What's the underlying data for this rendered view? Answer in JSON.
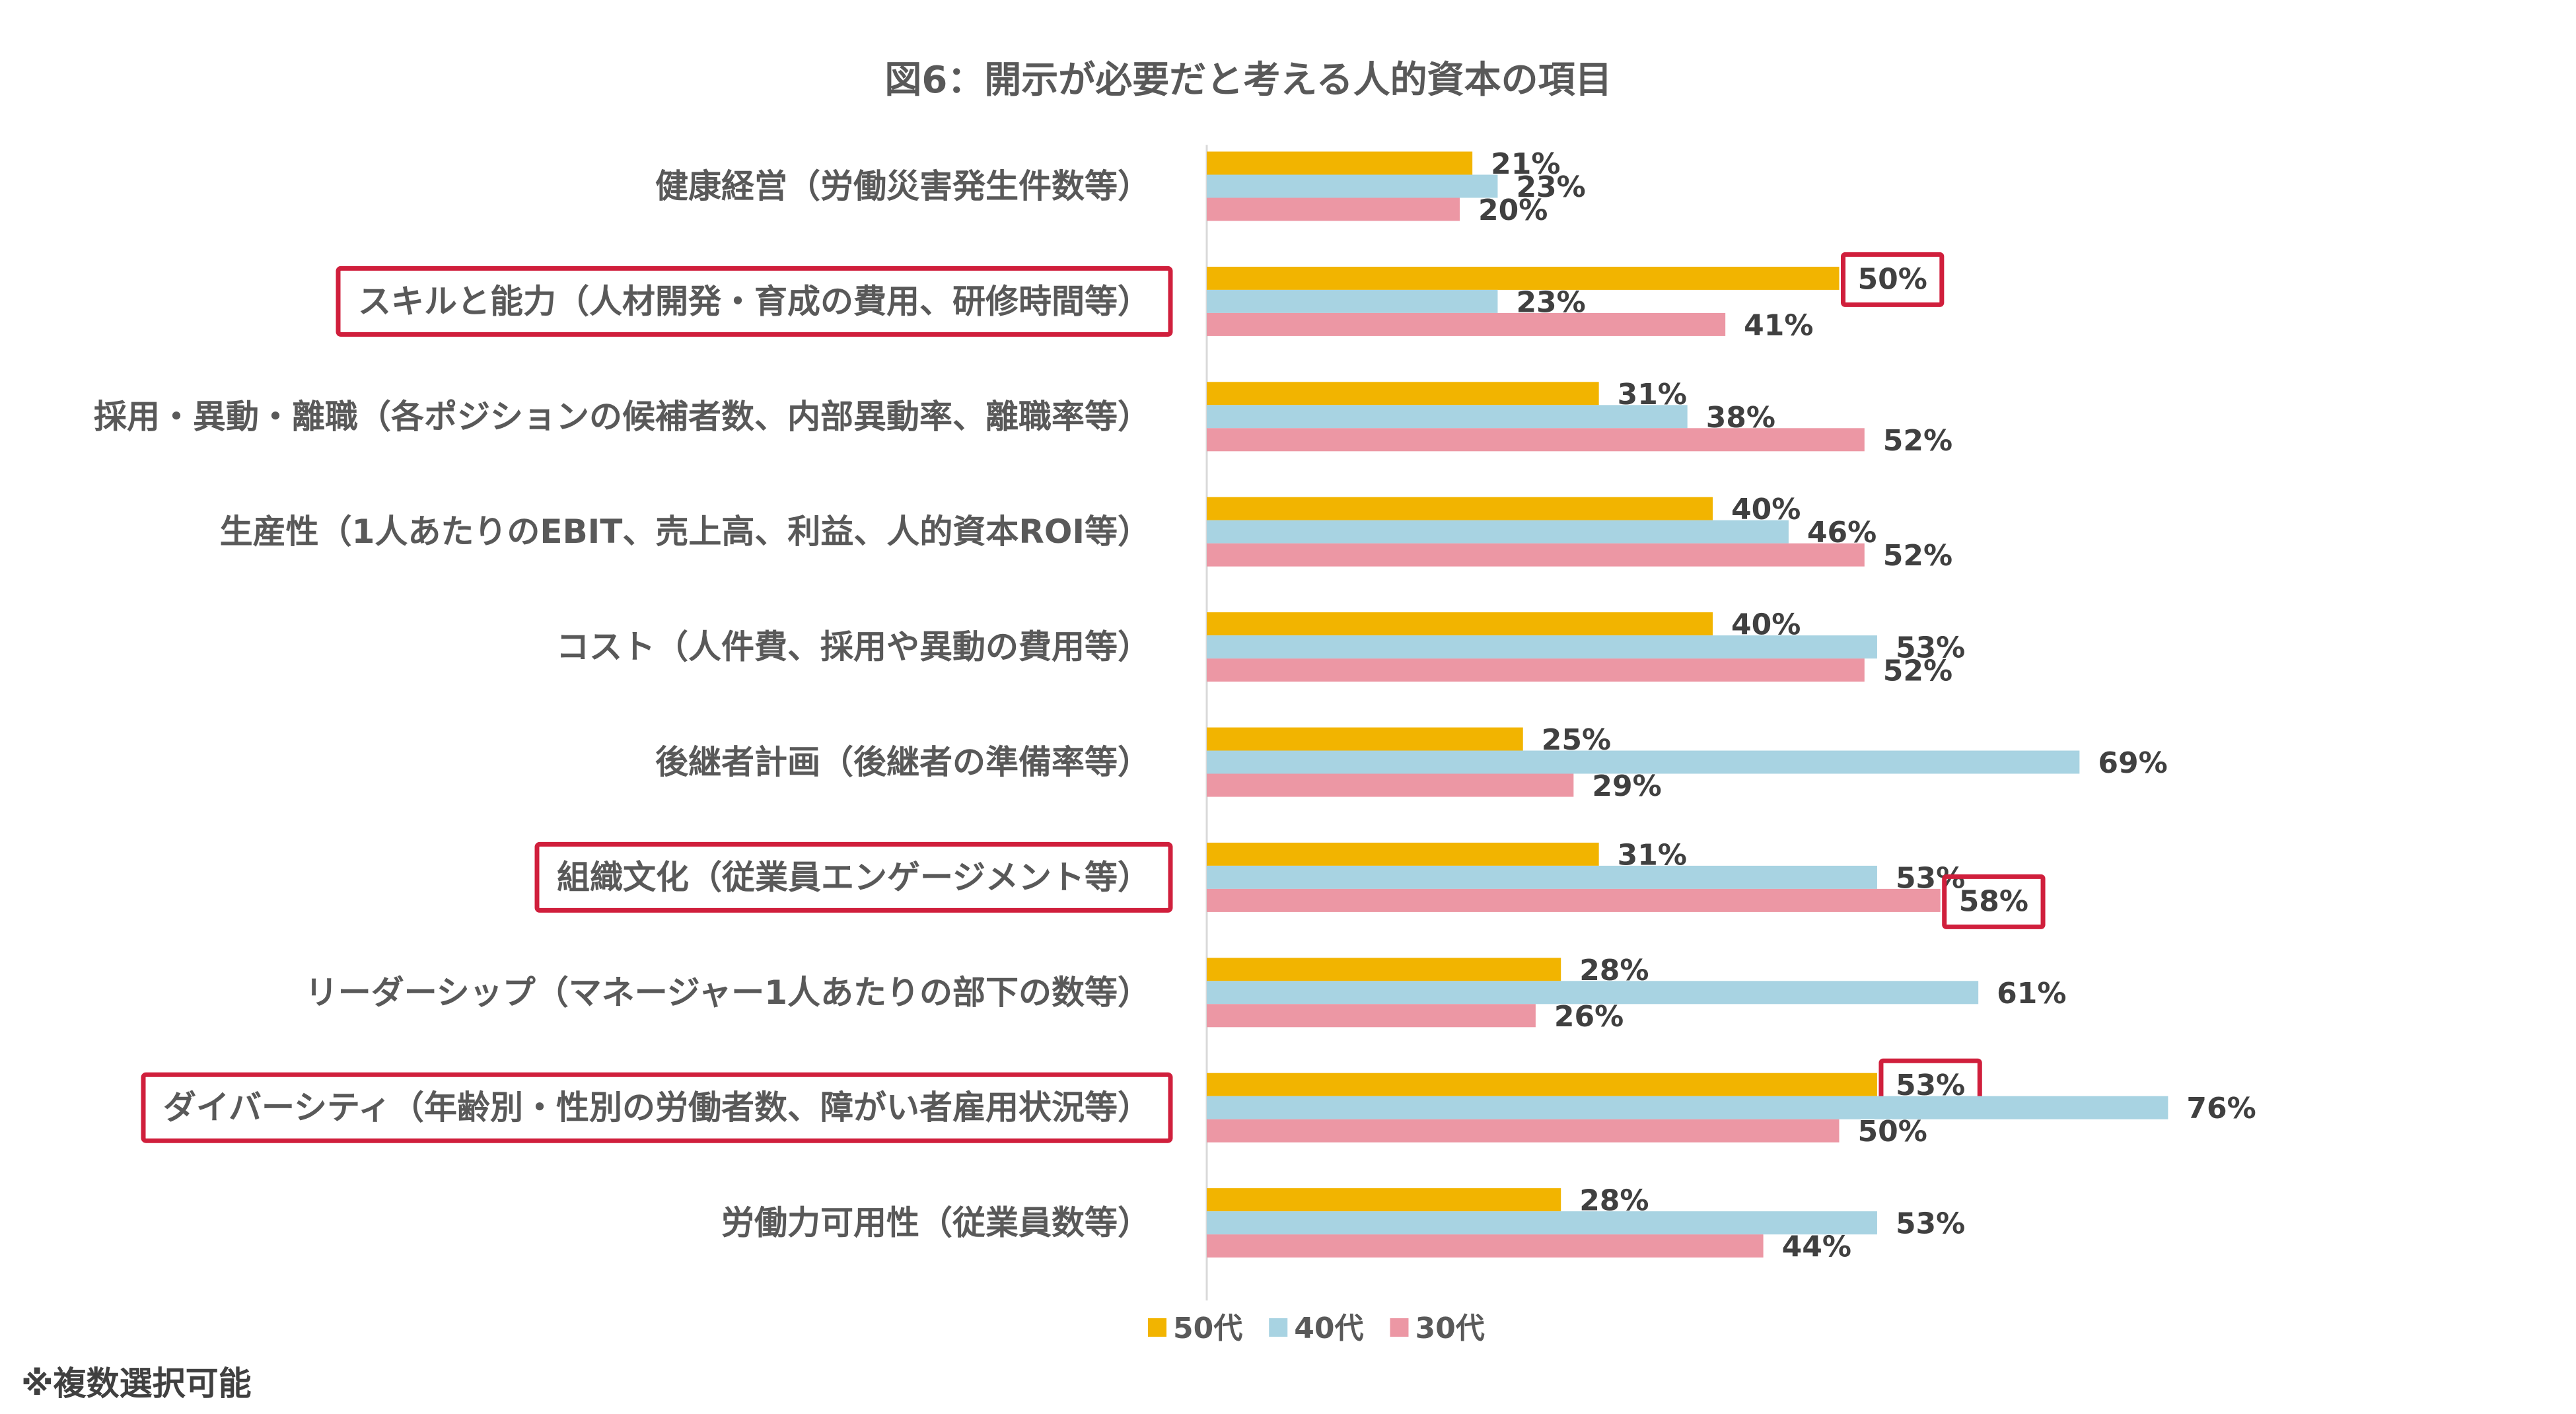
{
  "chart_data": {
    "type": "bar",
    "orientation": "horizontal",
    "title": "図6：開示が必要だと考える人的資本の項目",
    "categories": [
      "健康経営（労働災害発生件数等）",
      "スキルと能力（人材開発・育成の費用、研修時間等）",
      "採用・異動・離職（各ポジションの候補者数、内部異動率、離職率等）",
      "生産性（1人あたりのEBIT、売上高、利益、人的資本ROI等）",
      "コスト（人件費、採用や異動の費用等）",
      "後継者計画（後継者の準備率等）",
      "組織文化（従業員エンゲージメント等）",
      "リーダーシップ（マネージャー1人あたりの部下の数等）",
      "ダイバーシティ（年齢別・性別の労働者数、障がい者雇用状況等）",
      "労働力可用性（従業員数等）"
    ],
    "series": [
      {
        "name": "50代",
        "color": "#F2B400",
        "values": [
          21,
          50,
          31,
          40,
          40,
          25,
          31,
          28,
          53,
          28
        ]
      },
      {
        "name": "40代",
        "color": "#A8D3E2",
        "values": [
          23,
          23,
          38,
          46,
          53,
          69,
          53,
          61,
          76,
          53
        ]
      },
      {
        "name": "30代",
        "color": "#EC97A4",
        "values": [
          20,
          41,
          52,
          52,
          52,
          29,
          58,
          26,
          50,
          44
        ]
      }
    ],
    "value_suffix": "%",
    "xlim": [
      0,
      100
    ],
    "grid": false,
    "legend": "bottom",
    "highlighted_categories": [
      1,
      6,
      8
    ],
    "highlighted_values": [
      {
        "category": 1,
        "series": 0
      },
      {
        "category": 6,
        "series": 2
      },
      {
        "category": 8,
        "series": 0
      }
    ],
    "highlight_color": "#D01F3C"
  },
  "footnote": "※複数選択可能"
}
